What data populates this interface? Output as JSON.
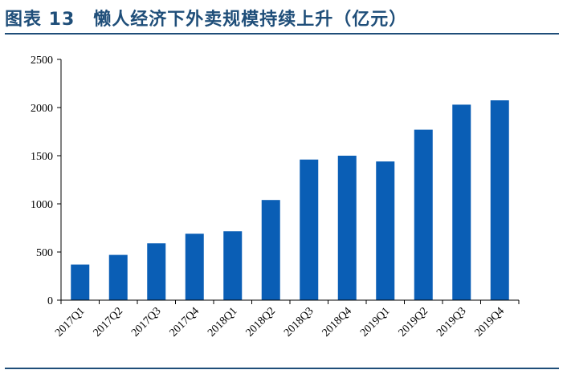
{
  "figure": {
    "title": "图表 13　懒人经济下外卖规模持续上升（亿元）"
  },
  "chart_data": {
    "type": "bar",
    "categories": [
      "2017Q1",
      "2017Q2",
      "2017Q3",
      "2017Q4",
      "2018Q1",
      "2018Q2",
      "2018Q3",
      "2018Q4",
      "2019Q1",
      "2019Q2",
      "2019Q3",
      "2019Q4"
    ],
    "values": [
      370,
      470,
      590,
      690,
      715,
      1040,
      1460,
      1500,
      1440,
      1770,
      2030,
      2075
    ],
    "ylim": [
      0,
      2500
    ],
    "yticks": [
      0,
      500,
      1000,
      1500,
      2000,
      2500
    ],
    "bar_color": "#0a5eb5",
    "grid": false,
    "legend": "none"
  }
}
